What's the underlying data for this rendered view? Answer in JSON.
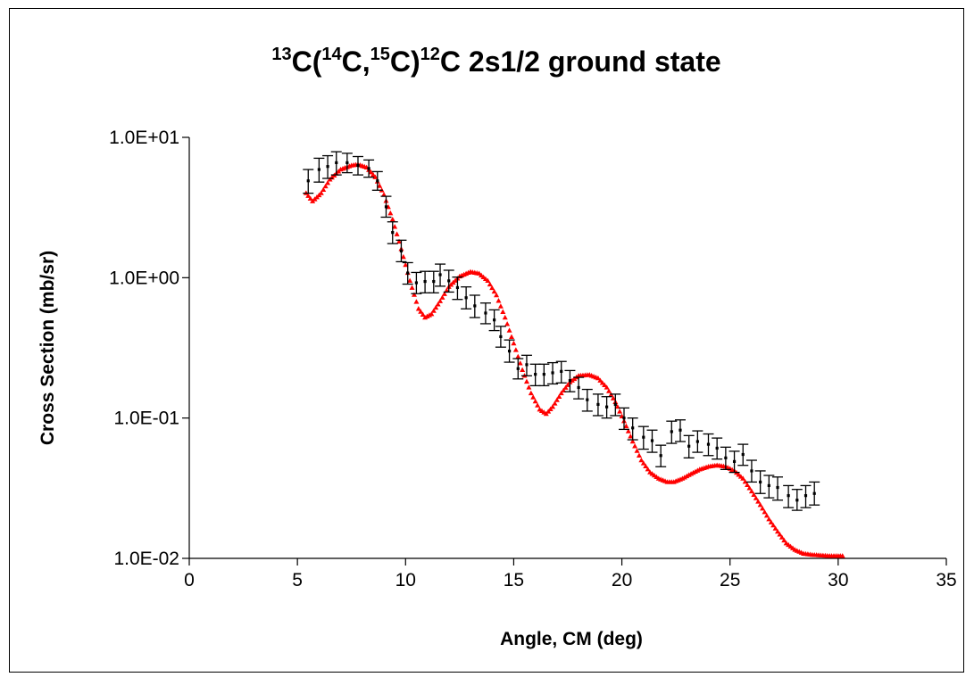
{
  "chart_data": {
    "type": "scatter",
    "title_parts": {
      "p1_sup": "13",
      "p1": "C(",
      "p2_sup": "14",
      "p2": "C,",
      "p3_sup": "15",
      "p3": "C)",
      "p4_sup": "12",
      "p4": "C 2s1/2 ground state"
    },
    "xlabel": "Angle, CM (deg)",
    "ylabel": "Cross Section (mb/sr)",
    "xlim": [
      0,
      35
    ],
    "ylim": [
      0.01,
      10
    ],
    "yscale": "log",
    "x_ticks": [
      0,
      5,
      10,
      15,
      20,
      25,
      30,
      35
    ],
    "x_tick_labels": [
      "0",
      "5",
      "10",
      "15",
      "20",
      "25",
      "30",
      "35"
    ],
    "y_ticks": [
      0.01,
      0.1,
      1,
      10
    ],
    "y_tick_labels": [
      "1.0E-02",
      "1.0E-01",
      "1.0E+00",
      "1.0E+01"
    ],
    "grid": false,
    "legend": "none",
    "series": [
      {
        "kind": "data-with-error-bars",
        "color": "#000000",
        "x": [
          5.5,
          6.0,
          6.4,
          6.8,
          7.3,
          7.8,
          8.3,
          8.7,
          9.1,
          9.4,
          9.8,
          10.1,
          10.5,
          10.9,
          11.3,
          11.6,
          12.0,
          12.4,
          12.8,
          13.2,
          13.7,
          14.1,
          14.4,
          14.8,
          15.2,
          15.6,
          16.0,
          16.4,
          16.8,
          17.2,
          17.6,
          18.0,
          18.4,
          18.9,
          19.3,
          19.7,
          20.1,
          20.5,
          21.0,
          21.4,
          21.8,
          22.3,
          22.7,
          23.1,
          23.5,
          24.0,
          24.4,
          24.8,
          25.2,
          25.6,
          26.0,
          26.4,
          26.8,
          27.2,
          27.7,
          28.1,
          28.5,
          28.9
        ],
        "y": [
          4.9,
          5.9,
          6.2,
          6.6,
          6.6,
          6.3,
          6.0,
          4.9,
          3.2,
          2.1,
          1.55,
          1.08,
          0.92,
          0.94,
          0.94,
          1.05,
          0.95,
          0.85,
          0.72,
          0.63,
          0.56,
          0.5,
          0.38,
          0.3,
          0.225,
          0.24,
          0.205,
          0.205,
          0.21,
          0.215,
          0.185,
          0.165,
          0.135,
          0.125,
          0.12,
          0.125,
          0.1,
          0.085,
          0.073,
          0.069,
          0.054,
          0.08,
          0.082,
          0.063,
          0.068,
          0.065,
          0.061,
          0.052,
          0.049,
          0.055,
          0.042,
          0.035,
          0.033,
          0.032,
          0.028,
          0.026,
          0.028,
          0.029
        ],
        "y_low": [
          4.0,
          4.8,
          5.1,
          5.4,
          5.6,
          5.4,
          5.2,
          4.2,
          2.7,
          1.75,
          1.3,
          0.9,
          0.77,
          0.78,
          0.78,
          0.87,
          0.79,
          0.7,
          0.6,
          0.52,
          0.47,
          0.42,
          0.32,
          0.25,
          0.19,
          0.2,
          0.17,
          0.17,
          0.175,
          0.178,
          0.154,
          0.137,
          0.112,
          0.104,
          0.1,
          0.104,
          0.083,
          0.07,
          0.06,
          0.057,
          0.045,
          0.066,
          0.068,
          0.052,
          0.057,
          0.054,
          0.051,
          0.043,
          0.041,
          0.046,
          0.035,
          0.029,
          0.027,
          0.026,
          0.023,
          0.022,
          0.023,
          0.024
        ],
        "y_high": [
          5.9,
          7.1,
          7.4,
          7.9,
          7.7,
          7.3,
          6.9,
          5.7,
          3.8,
          2.5,
          1.85,
          1.28,
          1.09,
          1.11,
          1.11,
          1.25,
          1.13,
          1.01,
          0.86,
          0.75,
          0.66,
          0.59,
          0.45,
          0.36,
          0.265,
          0.28,
          0.242,
          0.242,
          0.248,
          0.253,
          0.218,
          0.195,
          0.16,
          0.148,
          0.142,
          0.148,
          0.118,
          0.1,
          0.087,
          0.082,
          0.064,
          0.095,
          0.097,
          0.075,
          0.081,
          0.077,
          0.072,
          0.062,
          0.058,
          0.065,
          0.05,
          0.042,
          0.039,
          0.038,
          0.033,
          0.031,
          0.033,
          0.035
        ]
      },
      {
        "kind": "calculation",
        "color": "#ff0000",
        "marker": "triangle",
        "x": [
          5.4,
          5.7,
          6.1,
          6.5,
          7.0,
          7.5,
          7.8,
          8.2,
          8.6,
          9.0,
          9.4,
          9.8,
          10.2,
          10.6,
          10.9,
          11.2,
          11.6,
          12.0,
          12.5,
          13.0,
          13.4,
          13.8,
          14.2,
          14.6,
          15.0,
          15.4,
          15.8,
          16.2,
          16.5,
          16.8,
          17.2,
          17.6,
          18.0,
          18.5,
          18.9,
          19.3,
          19.7,
          20.1,
          20.5,
          20.9,
          21.3,
          21.7,
          22.1,
          22.4,
          22.8,
          23.2,
          23.6,
          24.0,
          24.4,
          24.8,
          25.2,
          25.6,
          26.0,
          26.4,
          26.8,
          27.2,
          27.6,
          28.0,
          28.4,
          28.8,
          29.2,
          29.6,
          30.2
        ],
        "y": [
          4.0,
          3.5,
          4.0,
          5.0,
          5.9,
          6.3,
          6.4,
          6.1,
          5.2,
          3.9,
          2.6,
          1.6,
          0.95,
          0.6,
          0.52,
          0.55,
          0.68,
          0.86,
          1.02,
          1.1,
          1.07,
          0.95,
          0.75,
          0.52,
          0.34,
          0.22,
          0.15,
          0.115,
          0.107,
          0.12,
          0.15,
          0.18,
          0.2,
          0.203,
          0.192,
          0.165,
          0.13,
          0.095,
          0.068,
          0.05,
          0.041,
          0.037,
          0.035,
          0.035,
          0.037,
          0.04,
          0.043,
          0.045,
          0.046,
          0.045,
          0.042,
          0.037,
          0.03,
          0.024,
          0.019,
          0.0155,
          0.0128,
          0.0115,
          0.0108,
          0.0106,
          0.0105,
          0.0104,
          0.0104
        ]
      }
    ]
  }
}
